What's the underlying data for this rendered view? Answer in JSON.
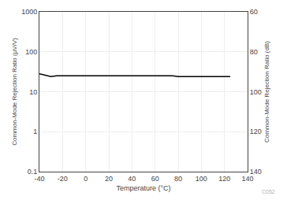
{
  "chart_data": {
    "type": "line",
    "xlabel": "Temperature (°C)",
    "ylabel": "Common-Mode Rejection Ratio (μV/V)",
    "y2label": "Common-Mode Rejection Ratio (dB)",
    "x": [
      -40,
      -30,
      -25,
      -20,
      -10,
      0,
      20,
      40,
      60,
      75,
      80,
      100,
      125
    ],
    "values": [
      28,
      24,
      25,
      25,
      25,
      25,
      25,
      25,
      25,
      25,
      24,
      24,
      24
    ],
    "color": "#000000",
    "xlim": [
      -40,
      140
    ],
    "xticks": [
      -40,
      -20,
      0,
      20,
      40,
      60,
      80,
      100,
      120,
      140
    ],
    "ylim": [
      0.1,
      1000
    ],
    "yticks": [
      0.1,
      1,
      10,
      100,
      1000
    ],
    "log": "y",
    "y2lim": [
      140,
      60
    ],
    "y2ticks": [
      60,
      80,
      100,
      120,
      140
    ],
    "grid": true,
    "annotations": [
      "C052"
    ]
  }
}
